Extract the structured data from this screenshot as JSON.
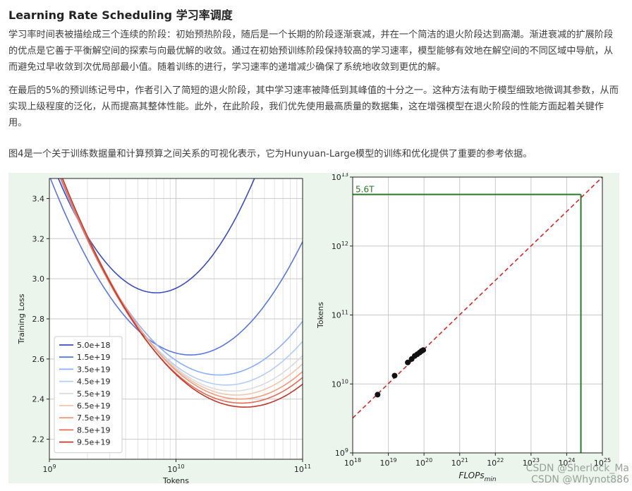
{
  "article": {
    "title": "Learning Rate Scheduling 学习率调度",
    "paragraphs": [
      "学习率时间表被描绘成三个连续的阶段：初始预热阶段，随后是一个长期的阶段逐渐衰减，并在一个简洁的退火阶段达到高潮。渐进衰减的扩展阶段的优点是它善于平衡解空间的探索与向最优解的收敛。通过在初始预训练阶段保持较高的学习速率，模型能够有效地在解空间的不同区域中导航，从而避免过早收敛到次优局部最小值。随着训练的进行，学习速率的递增减少确保了系统地收敛到更优的解。",
      "在最后的5%的预训练记号中，作者引入了简短的退火阶段，其中学习速率被降低到其峰值的十分之一。这种方法有助于模型细致地微调其参数，从而实现上级程度的泛化，从而提高其整体性能。此外，在此阶段，我们优先使用最高质量的数据集，这在增强模型在退火阶段的性能方面起着关键作用。"
    ],
    "figure_caption": "图4是一个关于训练数据量和计算预算之间关系的可视化表示，它为Hunyuan-Large模型的训练和优化提供了重要的参考依据。"
  },
  "watermarks": [
    "CSDN @Sherlock_Ma",
    "CSDN @Whynot886"
  ],
  "chart_data": [
    {
      "type": "line",
      "title": "",
      "xlabel": "Tokens",
      "ylabel": "Training Loss",
      "xscale": "log",
      "xlim": [
        1000000000.0,
        100000000000.0
      ],
      "ylim": [
        2.1,
        3.5
      ],
      "x_tick_labels": [
        "10^9",
        "10^10",
        "10^11"
      ],
      "y_tick_labels": [
        "2.2",
        "2.4",
        "2.6",
        "2.8",
        "3.0",
        "3.2",
        "3.4"
      ],
      "grid": true,
      "legend_position": "lower-left",
      "series": [
        {
          "name": "5.0e+18",
          "color": "#3b4cc0",
          "min_tokens": 7000000000.0,
          "min_loss": 2.93,
          "curvature": 0.95
        },
        {
          "name": "1.5e+19",
          "color": "#5977e3",
          "min_tokens": 13000000000.0,
          "min_loss": 2.62,
          "curvature": 0.72
        },
        {
          "name": "3.5e+19",
          "color": "#8caffe",
          "min_tokens": 22000000000.0,
          "min_loss": 2.52,
          "curvature": 0.62
        },
        {
          "name": "4.5e+19",
          "color": "#b5cdfa",
          "min_tokens": 25000000000.0,
          "min_loss": 2.47,
          "curvature": 0.6
        },
        {
          "name": "5.5e+19",
          "color": "#dddcdc",
          "min_tokens": 28000000000.0,
          "min_loss": 2.44,
          "curvature": 0.58
        },
        {
          "name": "6.5e+19",
          "color": "#f5c4ac",
          "min_tokens": 30000000000.0,
          "min_loss": 2.42,
          "curvature": 0.57
        },
        {
          "name": "7.5e+19",
          "color": "#f49a7b",
          "min_tokens": 32000000000.0,
          "min_loss": 2.4,
          "curvature": 0.56
        },
        {
          "name": "8.5e+19",
          "color": "#e36c55",
          "min_tokens": 33000000000.0,
          "min_loss": 2.38,
          "curvature": 0.55
        },
        {
          "name": "9.5e+19",
          "color": "#c0392b",
          "min_tokens": 35000000000.0,
          "min_loss": 2.36,
          "curvature": 0.55
        }
      ]
    },
    {
      "type": "scatter",
      "title": "",
      "xlabel": "FLOPs_min",
      "ylabel": "Tokens",
      "xscale": "log",
      "yscale": "log",
      "xlim": [
        1e+18,
        1e+25
      ],
      "ylim": [
        1000000000.0,
        10000000000000.0
      ],
      "x_tick_labels": [
        "10^18",
        "10^19",
        "10^20",
        "10^21",
        "10^22",
        "10^23",
        "10^24",
        "10^25"
      ],
      "y_tick_labels": [
        "10^9",
        "10^10",
        "10^11",
        "10^12",
        "10^13"
      ],
      "grid": true,
      "points": [
        {
          "flops": 5e+18,
          "tokens": 7000000000.0
        },
        {
          "flops": 1.5e+19,
          "tokens": 13200000000.0
        },
        {
          "flops": 3.5e+19,
          "tokens": 20500000000.0
        },
        {
          "flops": 4.5e+19,
          "tokens": 23000000000.0
        },
        {
          "flops": 5.5e+19,
          "tokens": 25500000000.0
        },
        {
          "flops": 6.5e+19,
          "tokens": 27000000000.0
        },
        {
          "flops": 7.5e+19,
          "tokens": 28500000000.0
        },
        {
          "flops": 8.5e+19,
          "tokens": 30000000000.0
        },
        {
          "flops": 9.5e+19,
          "tokens": 31000000000.0
        }
      ],
      "fit_line": {
        "style": "dashed",
        "color": "#d62728",
        "x_range": [
          1e+18,
          1e+25
        ],
        "y_range": [
          3200000000.0,
          10000000000000.0
        ]
      },
      "annotation": {
        "text": "5.6T",
        "flops": 2.5e+24,
        "tokens": 5600000000000.0,
        "color": "#2a7a2a"
      }
    }
  ]
}
